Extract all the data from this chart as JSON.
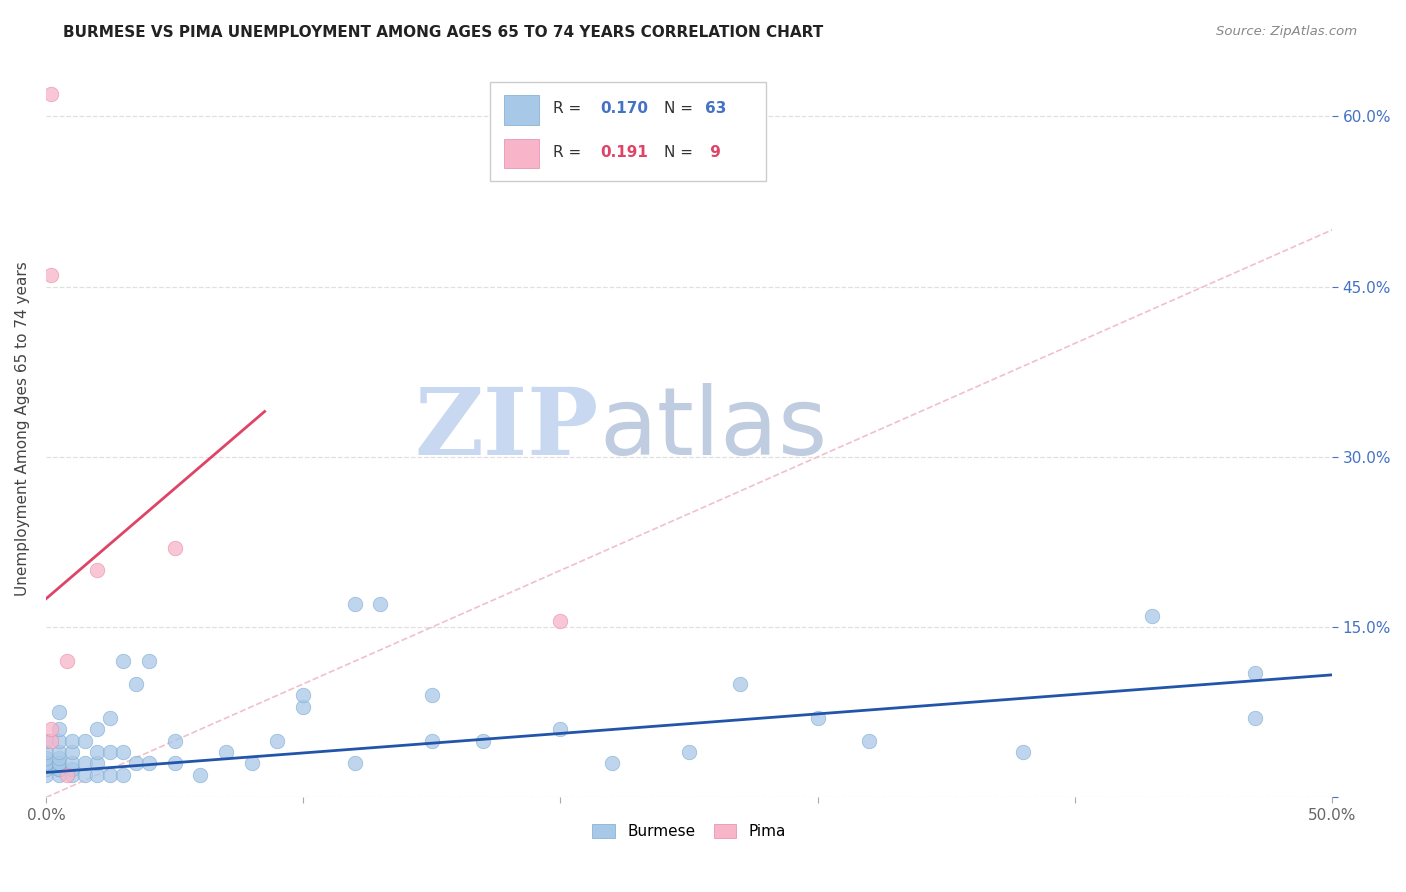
{
  "title": "BURMESE VS PIMA UNEMPLOYMENT AMONG AGES 65 TO 74 YEARS CORRELATION CHART",
  "source": "Source: ZipAtlas.com",
  "ylabel": "Unemployment Among Ages 65 to 74 years",
  "xlim": [
    0.0,
    0.5
  ],
  "ylim": [
    0.0,
    0.65
  ],
  "burmese_color": "#a8c8e8",
  "burmese_edge_color": "#7aaace",
  "pima_color": "#f8b4c8",
  "pima_edge_color": "#e888a8",
  "burmese_line_color": "#2255aa",
  "pima_line_color": "#dd4466",
  "diagonal_color": "#f0c0cc",
  "burmese_R": 0.17,
  "burmese_N": 63,
  "pima_R": 0.191,
  "pima_N": 9,
  "legend_burmese_label": "Burmese",
  "legend_pima_label": "Pima",
  "watermark_zip": "ZIP",
  "watermark_atlas": "atlas",
  "watermark_color_zip": "#c8d8f0",
  "watermark_color_atlas": "#c0cce0",
  "background_color": "#ffffff",
  "burmese_x": [
    0.0,
    0.0,
    0.0,
    0.0,
    0.0,
    0.0,
    0.0,
    0.005,
    0.005,
    0.005,
    0.005,
    0.005,
    0.005,
    0.005,
    0.005,
    0.005,
    0.005,
    0.01,
    0.01,
    0.01,
    0.01,
    0.01,
    0.015,
    0.015,
    0.015,
    0.02,
    0.02,
    0.02,
    0.02,
    0.025,
    0.025,
    0.025,
    0.03,
    0.03,
    0.03,
    0.035,
    0.035,
    0.04,
    0.04,
    0.05,
    0.05,
    0.06,
    0.07,
    0.08,
    0.09,
    0.1,
    0.1,
    0.12,
    0.12,
    0.13,
    0.15,
    0.15,
    0.17,
    0.2,
    0.22,
    0.25,
    0.27,
    0.3,
    0.32,
    0.38,
    0.43,
    0.47,
    0.47
  ],
  "burmese_y": [
    0.02,
    0.025,
    0.03,
    0.03,
    0.035,
    0.04,
    0.05,
    0.02,
    0.025,
    0.025,
    0.03,
    0.03,
    0.035,
    0.04,
    0.05,
    0.06,
    0.075,
    0.02,
    0.025,
    0.03,
    0.04,
    0.05,
    0.02,
    0.03,
    0.05,
    0.02,
    0.03,
    0.04,
    0.06,
    0.02,
    0.04,
    0.07,
    0.02,
    0.04,
    0.12,
    0.03,
    0.1,
    0.03,
    0.12,
    0.03,
    0.05,
    0.02,
    0.04,
    0.03,
    0.05,
    0.08,
    0.09,
    0.03,
    0.17,
    0.17,
    0.05,
    0.09,
    0.05,
    0.06,
    0.03,
    0.04,
    0.1,
    0.07,
    0.05,
    0.04,
    0.16,
    0.07,
    0.11
  ],
  "pima_x": [
    0.002,
    0.002,
    0.002,
    0.002,
    0.008,
    0.008,
    0.02,
    0.05,
    0.2
  ],
  "pima_y": [
    0.05,
    0.06,
    0.46,
    0.62,
    0.12,
    0.02,
    0.2,
    0.22,
    0.155
  ],
  "burmese_trend_x": [
    0.0,
    0.5
  ],
  "burmese_trend_y": [
    0.022,
    0.108
  ],
  "pima_trend_x": [
    0.0,
    0.085
  ],
  "pima_trend_y": [
    0.175,
    0.34
  ],
  "ytick_positions": [
    0.0,
    0.15,
    0.3,
    0.45,
    0.6
  ],
  "ytick_labels_right": [
    "",
    "15.0%",
    "30.0%",
    "45.0%",
    "60.0%"
  ],
  "xtick_positions": [
    0.0,
    0.1,
    0.2,
    0.3,
    0.4,
    0.5
  ],
  "xtick_labels": [
    "0.0%",
    "",
    "",
    "",
    "",
    "50.0%"
  ],
  "right_tick_color": "#4472c4",
  "grid_color": "#e0e0e0",
  "tick_label_color": "#666666"
}
